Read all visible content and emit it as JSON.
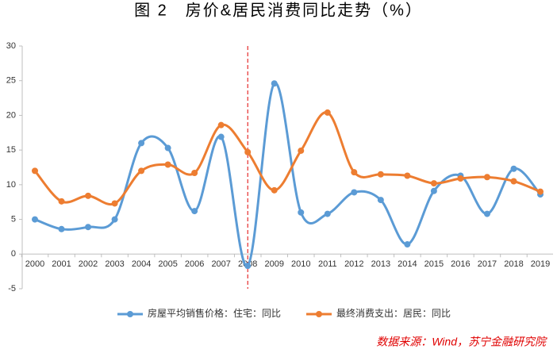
{
  "chart_data": {
    "type": "line",
    "title": "图 2　房价&居民消费同比走势（%）",
    "source": "数据来源：Wind，苏宁金融研究院",
    "categories": [
      "2000",
      "2001",
      "2002",
      "2003",
      "2004",
      "2005",
      "2006",
      "2007",
      "2008",
      "2009",
      "2010",
      "2011",
      "2012",
      "2013",
      "2014",
      "2015",
      "2016",
      "2017",
      "2018",
      "2019"
    ],
    "series": [
      {
        "name": "房屋平均销售价格：住宅：同比",
        "color": "#5b9bd5",
        "values": [
          5.0,
          3.6,
          3.9,
          5.0,
          16.0,
          15.3,
          6.2,
          16.9,
          -1.7,
          24.6,
          6.0,
          5.8,
          8.9,
          7.8,
          1.4,
          9.1,
          11.3,
          5.8,
          12.3,
          8.6
        ]
      },
      {
        "name": "最终消费支出：居民：同比",
        "color": "#ed7d31",
        "values": [
          12.0,
          7.6,
          8.4,
          7.3,
          12.0,
          12.9,
          11.7,
          18.6,
          14.7,
          9.2,
          14.9,
          20.4,
          11.8,
          11.5,
          11.3,
          10.2,
          10.9,
          11.1,
          10.5,
          9.0
        ]
      }
    ],
    "ylim": [
      -5,
      30
    ],
    "yticks": [
      -5,
      0,
      5,
      10,
      15,
      20,
      25,
      30
    ],
    "legend": "bottom",
    "grid": false
  }
}
